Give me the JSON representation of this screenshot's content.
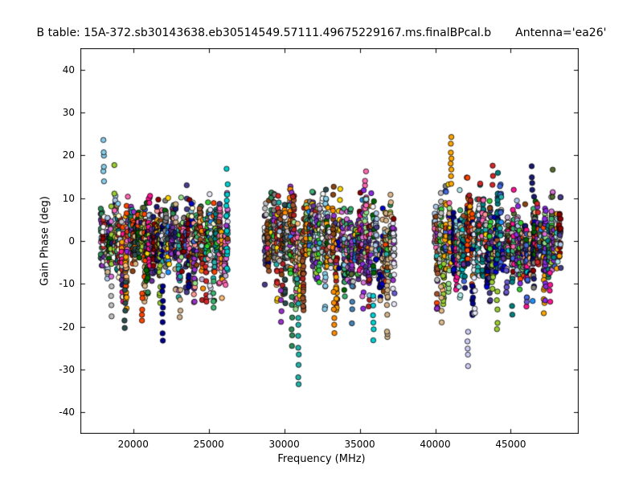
{
  "chart_data": {
    "type": "scatter",
    "title": "B table: 15A-372.sb30143638.eb30514549.57111.49675229167.ms.finalBPcal.b",
    "annotation": "Antenna='ea26'",
    "xlabel": "Frequency (MHz)",
    "ylabel": "Gain Phase (deg)",
    "xlim": [
      16500,
      49500
    ],
    "ylim": [
      -45,
      45
    ],
    "xticks": [
      20000,
      25000,
      30000,
      35000,
      40000,
      45000
    ],
    "yticks": [
      -40,
      -30,
      -20,
      -10,
      0,
      10,
      20,
      30,
      40
    ],
    "grid": false,
    "legend": "none",
    "background_color": "#ffffff",
    "axes_color": "#000000",
    "marker": {
      "shape": "circle",
      "radius_px": 3.2,
      "edge_color": "#000000"
    },
    "seed": 42,
    "bands": [
      {
        "x_min": 17800,
        "x_max": 26300,
        "n_columns": 48,
        "y_core": [
          -16,
          18
        ]
      },
      {
        "x_min": 28700,
        "x_max": 37300,
        "n_columns": 48,
        "y_core": [
          -16,
          18
        ]
      },
      {
        "x_min": 39900,
        "x_max": 48300,
        "n_columns": 48,
        "y_core": [
          -16,
          18
        ]
      }
    ],
    "outliers": [
      {
        "x": 18050,
        "y_from": 14,
        "y_to": 23,
        "color": "#87ceeb",
        "n": 6
      },
      {
        "x": 19450,
        "y_from": -12,
        "y_to": -20,
        "color": "#2f4f4f",
        "n": 5
      },
      {
        "x": 18550,
        "y_from": -11,
        "y_to": -17,
        "color": "#c0c0c0",
        "n": 4
      },
      {
        "x": 20600,
        "y_from": -12,
        "y_to": -19,
        "color": "#ff4500",
        "n": 5
      },
      {
        "x": 21950,
        "y_from": -10,
        "y_to": -23,
        "color": "#00008b",
        "n": 8
      },
      {
        "x": 23100,
        "y_from": -11,
        "y_to": -18,
        "color": "#d2b48c",
        "n": 4
      },
      {
        "x": 25300,
        "y_from": -10,
        "y_to": -16,
        "color": "#3cb371",
        "n": 4
      },
      {
        "x": 29800,
        "y_from": -12,
        "y_to": -19,
        "color": "#9932cc",
        "n": 4
      },
      {
        "x": 30500,
        "y_from": -13,
        "y_to": -25,
        "color": "#2e8b57",
        "n": 6
      },
      {
        "x": 30950,
        "y_from": -15,
        "y_to": -34,
        "color": "#20b2aa",
        "n": 9
      },
      {
        "x": 33300,
        "y_from": -12,
        "y_to": -22,
        "color": "#ff8c00",
        "n": 6
      },
      {
        "x": 35900,
        "y_from": -13,
        "y_to": -23,
        "color": "#00ced1",
        "n": 6
      },
      {
        "x": 34500,
        "y_from": -11,
        "y_to": -19,
        "color": "#4682b4",
        "n": 4
      },
      {
        "x": 41050,
        "y_from": 13,
        "y_to": 24,
        "color": "#ffa500",
        "n": 8
      },
      {
        "x": 42150,
        "y_from": -21,
        "y_to": -29,
        "color": "#ccccf5",
        "n": 5
      },
      {
        "x": 44100,
        "y_from": -12,
        "y_to": -21,
        "color": "#9acd32",
        "n": 5
      },
      {
        "x": 40400,
        "y_from": -11,
        "y_to": -19,
        "color": "#deb887",
        "n": 4
      },
      {
        "x": 43800,
        "y_from": 13,
        "y_to": 17,
        "color": "#d62728",
        "n": 3
      },
      {
        "x": 46400,
        "y_from": 12,
        "y_to": 17,
        "color": "#191970",
        "n": 4
      },
      {
        "x": 47600,
        "y_from": -8,
        "y_to": -14,
        "color": "#ff1493",
        "n": 4
      }
    ],
    "palette": [
      "#00008b",
      "#0000cd",
      "#4169e1",
      "#1e90ff",
      "#87ceeb",
      "#00ced1",
      "#20b2aa",
      "#008080",
      "#2e8b57",
      "#3cb371",
      "#32cd32",
      "#9acd32",
      "#556b2f",
      "#006400",
      "#ffd700",
      "#ffa500",
      "#ff8c00",
      "#ff4500",
      "#d62728",
      "#b22222",
      "#8b0000",
      "#ff69b4",
      "#ff1493",
      "#da70d6",
      "#9932cc",
      "#8a2be2",
      "#6a5acd",
      "#483d8b",
      "#8b4513",
      "#a0522d",
      "#deb887",
      "#d2b48c",
      "#c0c0c0",
      "#808080",
      "#2f4f4f",
      "#e8e8f8",
      "#f5f5f5",
      "#fffacd",
      "#aee8e8",
      "#98df8a",
      "#aec7e8",
      "#ffbb78",
      "#c5b0d5",
      "#ff9896",
      "#191970",
      "#663399"
    ]
  }
}
